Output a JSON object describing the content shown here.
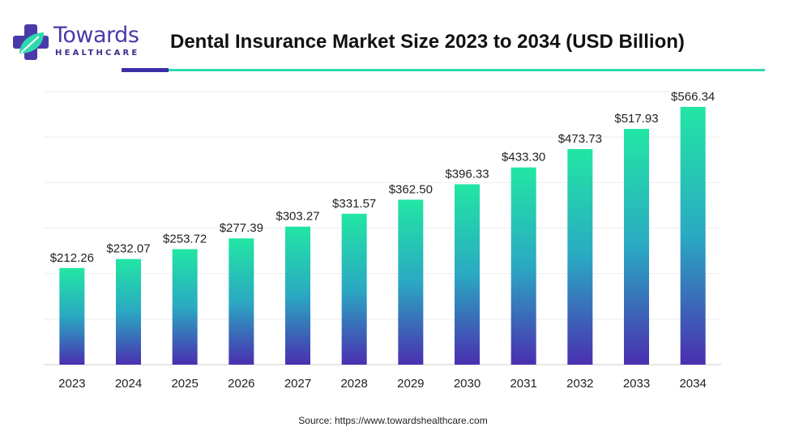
{
  "brand": {
    "name": "Towards",
    "sub": "HEALTHCARE",
    "colors": {
      "purple": "#4a3aa8",
      "teal": "#2fd9ae",
      "accent": "#3b2fa8"
    }
  },
  "chart_data": {
    "type": "bar",
    "title": "Dental Insurance Market Size 2023 to 2034 (USD Billion)",
    "xlabel": "",
    "ylabel": "",
    "categories": [
      "2023",
      "2024",
      "2025",
      "2026",
      "2027",
      "2028",
      "2029",
      "2030",
      "2031",
      "2032",
      "2033",
      "2034"
    ],
    "values": [
      212.26,
      232.07,
      253.72,
      277.39,
      303.27,
      331.57,
      362.5,
      396.33,
      433.3,
      473.73,
      517.93,
      566.34
    ],
    "value_labels": [
      "$212.26",
      "$232.07",
      "$253.72",
      "$277.39",
      "$303.27",
      "$331.57",
      "$362.50",
      "$396.33",
      "$433.30",
      "$473.73",
      "$517.93",
      "$566.34"
    ],
    "ylim": [
      0,
      600
    ],
    "grid": true,
    "legend": "none",
    "colors": {
      "bar_top": "#22e6a4",
      "bar_mid": "#2aa9c2",
      "bar_bottom": "#4a2fb0",
      "grid": "#eeeeee"
    }
  },
  "source": "Source: https://www.towardshealthcare.com"
}
